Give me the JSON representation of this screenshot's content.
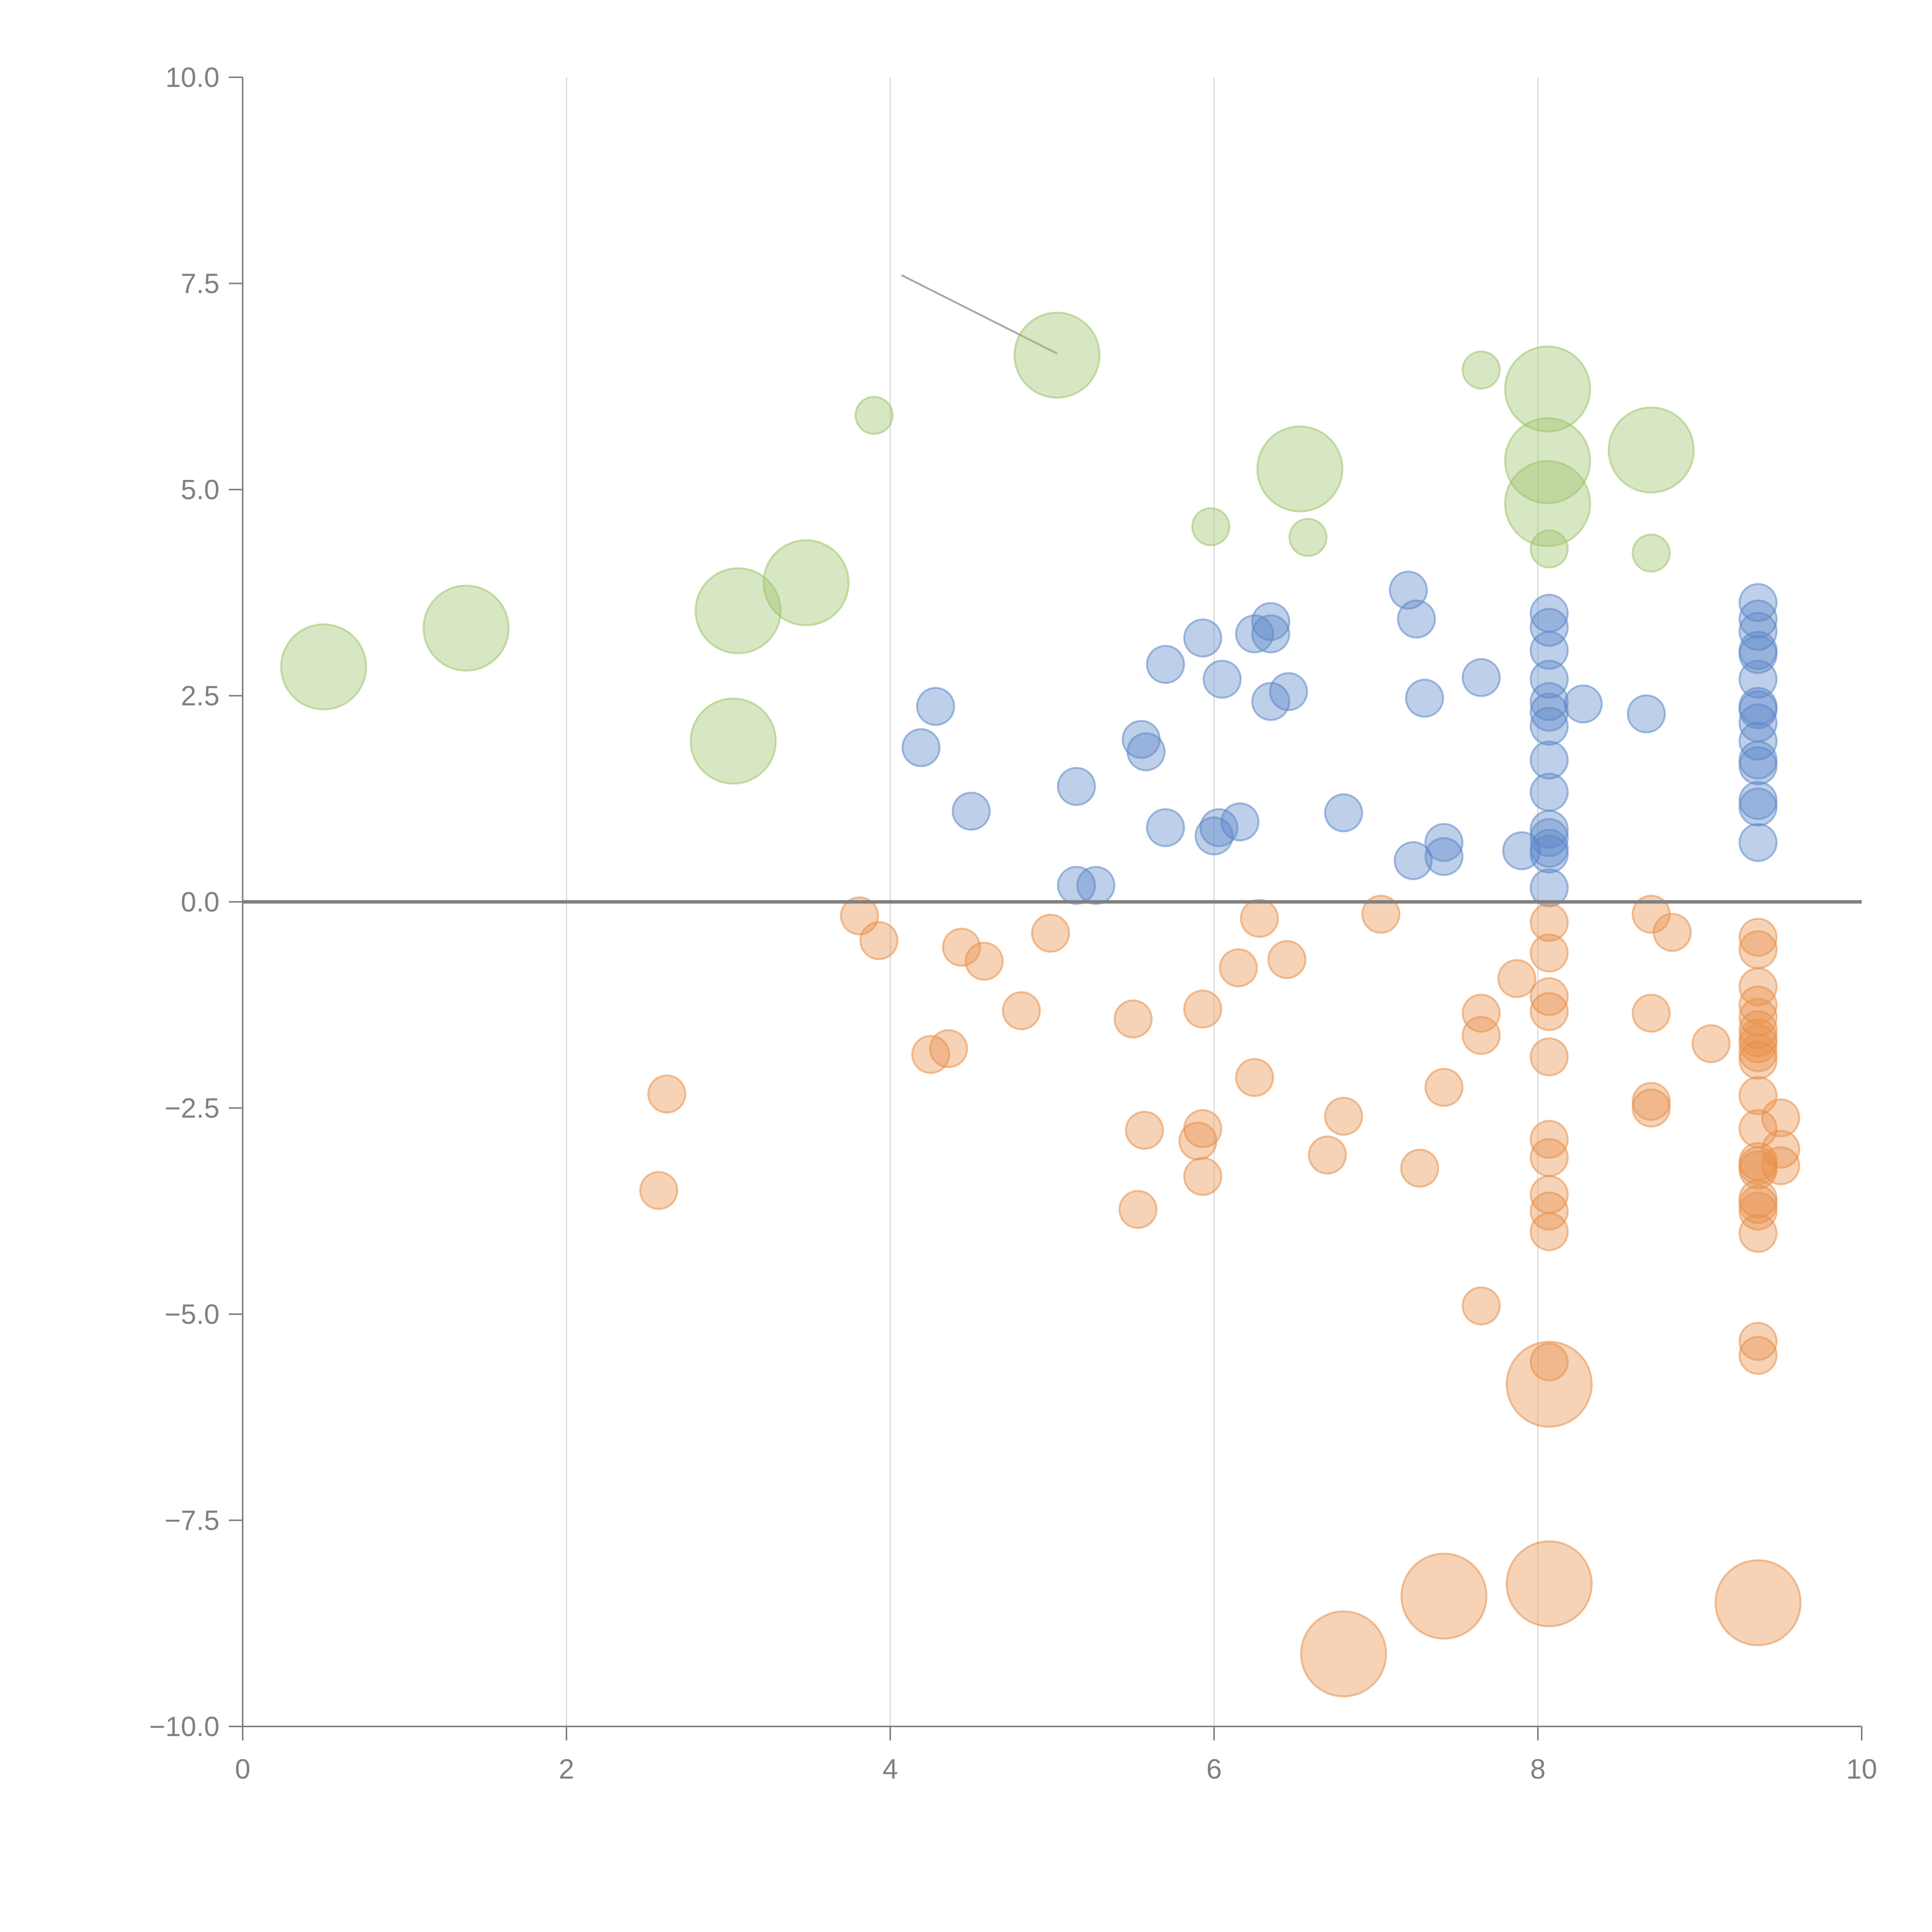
{
  "chart_data": {
    "type": "scatter",
    "title": "",
    "xlabel": "",
    "ylabel": "",
    "xlim": [
      0,
      10
    ],
    "ylim": [
      -10,
      10
    ],
    "x_ticks": [
      0,
      2,
      4,
      6,
      8,
      10
    ],
    "x_tick_labels": [
      "0",
      "2",
      "4",
      "6",
      "8",
      "10"
    ],
    "y_ticks": [
      10,
      7.5,
      5,
      2.5,
      0,
      -2.5,
      -5,
      -7.5,
      -10
    ],
    "y_tick_labels": [
      "10.0",
      "7.5",
      "5.0",
      "2.5",
      "0.0",
      "−2.5",
      "−5.0",
      "−7.5",
      "−10.0"
    ],
    "vertical_grid": true,
    "zero_line": true,
    "colors": {
      "green": "#9dc46a",
      "blue": "#5d88c8",
      "orange": "#e8904a",
      "axis": "#808080",
      "grid": "#d9d9d9",
      "leader": "#aaaaaa"
    },
    "series": [
      {
        "name": "green-large",
        "color": "green",
        "size": "large",
        "points": [
          [
            0.5,
            2.85
          ],
          [
            1.38,
            3.32
          ],
          [
            3.06,
            3.53
          ],
          [
            3.48,
            3.87
          ],
          [
            3.03,
            1.95
          ],
          [
            5.03,
            6.63
          ],
          [
            6.53,
            5.25
          ],
          [
            8.06,
            6.22
          ],
          [
            8.06,
            5.35
          ],
          [
            8.06,
            4.83
          ],
          [
            8.7,
            5.48
          ]
        ]
      },
      {
        "name": "green-small",
        "color": "green",
        "size": "small",
        "points": [
          [
            3.9,
            5.9
          ],
          [
            7.65,
            6.45
          ],
          [
            5.98,
            4.55
          ],
          [
            6.58,
            4.42
          ],
          [
            8.07,
            4.28
          ],
          [
            8.7,
            4.23
          ]
        ]
      },
      {
        "name": "blue-small",
        "color": "blue",
        "size": "small",
        "points": [
          [
            4.28,
            2.37
          ],
          [
            4.19,
            1.87
          ],
          [
            4.5,
            1.1
          ],
          [
            5.15,
            1.4
          ],
          [
            5.15,
            0.2
          ],
          [
            5.27,
            0.2
          ],
          [
            5.55,
            1.97
          ],
          [
            5.58,
            1.82
          ],
          [
            5.7,
            2.88
          ],
          [
            5.7,
            0.9
          ],
          [
            5.93,
            3.2
          ],
          [
            6.0,
            0.8
          ],
          [
            6.03,
            0.9
          ],
          [
            6.05,
            2.7
          ],
          [
            6.16,
            0.97
          ],
          [
            6.25,
            3.25
          ],
          [
            6.35,
            3.4
          ],
          [
            6.35,
            3.25
          ],
          [
            6.35,
            2.43
          ],
          [
            6.46,
            2.55
          ],
          [
            6.8,
            1.08
          ],
          [
            7.2,
            3.78
          ],
          [
            7.25,
            3.43
          ],
          [
            7.3,
            2.47
          ],
          [
            7.23,
            0.5
          ],
          [
            7.42,
            0.72
          ],
          [
            7.42,
            0.55
          ],
          [
            7.65,
            2.72
          ],
          [
            7.9,
            0.62
          ],
          [
            8.07,
            3.5
          ],
          [
            8.07,
            3.33
          ],
          [
            8.07,
            3.05
          ],
          [
            8.07,
            2.7
          ],
          [
            8.07,
            2.43
          ],
          [
            8.07,
            2.3
          ],
          [
            8.07,
            2.13
          ],
          [
            8.07,
            1.72
          ],
          [
            8.07,
            1.33
          ],
          [
            8.07,
            0.88
          ],
          [
            8.07,
            0.78
          ],
          [
            8.07,
            0.65
          ],
          [
            8.07,
            0.58
          ],
          [
            8.07,
            0.17
          ],
          [
            8.28,
            2.4
          ],
          [
            8.67,
            2.28
          ],
          [
            9.36,
            3.63
          ],
          [
            9.36,
            3.43
          ],
          [
            9.36,
            3.28
          ],
          [
            9.36,
            3.05
          ],
          [
            9.36,
            3.0
          ],
          [
            9.36,
            2.7
          ],
          [
            9.36,
            2.37
          ],
          [
            9.36,
            2.33
          ],
          [
            9.36,
            2.17
          ],
          [
            9.36,
            1.95
          ],
          [
            9.36,
            1.72
          ],
          [
            9.36,
            1.65
          ],
          [
            9.36,
            1.23
          ],
          [
            9.36,
            1.15
          ],
          [
            9.36,
            0.72
          ]
        ]
      },
      {
        "name": "orange-small",
        "color": "orange",
        "size": "small",
        "points": [
          [
            2.62,
            -2.33
          ],
          [
            2.57,
            -3.5
          ],
          [
            3.81,
            -0.17
          ],
          [
            3.93,
            -0.47
          ],
          [
            4.25,
            -1.85
          ],
          [
            4.36,
            -1.78
          ],
          [
            4.44,
            -0.55
          ],
          [
            4.58,
            -0.72
          ],
          [
            4.81,
            -1.32
          ],
          [
            4.99,
            -0.38
          ],
          [
            5.5,
            -1.42
          ],
          [
            5.53,
            -3.73
          ],
          [
            5.57,
            -2.77
          ],
          [
            5.9,
            -2.9
          ],
          [
            5.93,
            -1.3
          ],
          [
            5.93,
            -2.75
          ],
          [
            5.93,
            -3.33
          ],
          [
            6.15,
            -0.8
          ],
          [
            6.25,
            -2.13
          ],
          [
            6.28,
            -0.2
          ],
          [
            6.45,
            -0.7
          ],
          [
            6.7,
            -3.07
          ],
          [
            6.8,
            -2.6
          ],
          [
            7.03,
            -0.15
          ],
          [
            7.27,
            -3.23
          ],
          [
            7.42,
            -2.25
          ],
          [
            7.65,
            -1.35
          ],
          [
            7.65,
            -1.62
          ],
          [
            7.65,
            -4.9
          ],
          [
            7.87,
            -0.93
          ],
          [
            8.07,
            -0.25
          ],
          [
            8.07,
            -0.62
          ],
          [
            8.07,
            -1.15
          ],
          [
            8.07,
            -1.33
          ],
          [
            8.07,
            -1.88
          ],
          [
            8.07,
            -2.88
          ],
          [
            8.07,
            -3.1
          ],
          [
            8.07,
            -3.55
          ],
          [
            8.07,
            -3.75
          ],
          [
            8.07,
            -4.0
          ],
          [
            8.07,
            -5.58
          ],
          [
            8.7,
            -0.15
          ],
          [
            8.83,
            -0.37
          ],
          [
            8.7,
            -1.35
          ],
          [
            8.7,
            -2.42
          ],
          [
            8.7,
            -2.5
          ],
          [
            9.07,
            -1.72
          ],
          [
            9.36,
            -0.43
          ],
          [
            9.36,
            -0.58
          ],
          [
            9.36,
            -1.03
          ],
          [
            9.36,
            -1.25
          ],
          [
            9.36,
            -1.4
          ],
          [
            9.36,
            -1.55
          ],
          [
            9.36,
            -1.65
          ],
          [
            9.36,
            -1.72
          ],
          [
            9.36,
            -1.83
          ],
          [
            9.36,
            -1.92
          ],
          [
            9.36,
            -2.35
          ],
          [
            9.36,
            -2.75
          ],
          [
            9.36,
            -3.15
          ],
          [
            9.36,
            -3.2
          ],
          [
            9.36,
            -3.25
          ],
          [
            9.36,
            -3.6
          ],
          [
            9.36,
            -3.67
          ],
          [
            9.36,
            -3.75
          ],
          [
            9.36,
            -4.02
          ],
          [
            9.36,
            -5.33
          ],
          [
            9.36,
            -5.5
          ],
          [
            9.5,
            -2.62
          ],
          [
            9.5,
            -3.0
          ],
          [
            9.5,
            -3.2
          ]
        ]
      },
      {
        "name": "orange-large",
        "color": "orange",
        "size": "large",
        "points": [
          [
            8.07,
            -5.85
          ],
          [
            7.42,
            -8.42
          ],
          [
            8.07,
            -8.27
          ],
          [
            6.8,
            -9.12
          ],
          [
            9.36,
            -8.5
          ]
        ]
      }
    ],
    "leader_lines": [
      {
        "from": [
          4.07,
          7.6
        ],
        "to": [
          5.03,
          6.65
        ],
        "color": "leader"
      }
    ]
  }
}
